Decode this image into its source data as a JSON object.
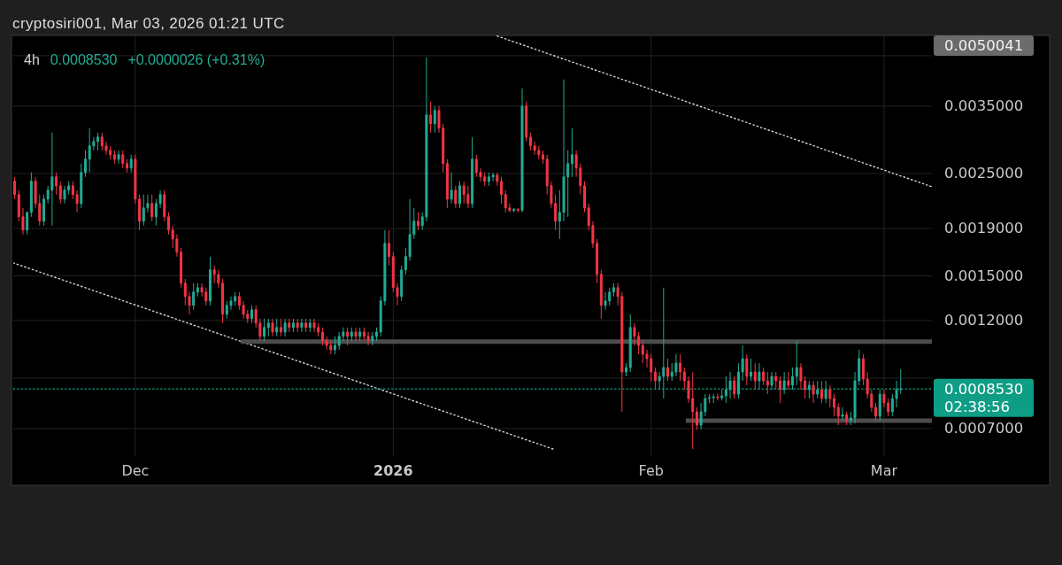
{
  "chart_data": {
    "type": "candlestick",
    "title": "4h",
    "annotations": [
      "cryptosiri001, Mar 03, 2026 01:21 UTC",
      "0.0008530",
      "+0.0000026 (+0.31%)",
      "0.0050041",
      "02:38:56"
    ],
    "colors": [
      "#f23645",
      "#f23645",
      "#f23645",
      "#22ab94",
      "#22ab94",
      "#f23645",
      "#f23645",
      "#22ab94",
      "#22ab94",
      "#22ab94",
      "#f23645",
      "#f23645",
      "#22ab94",
      "#22ab94",
      "#f23645",
      "#f23645",
      "#22ab94",
      "#22ab94",
      "#22ab94",
      "#22ab94",
      "#22ab94",
      "#f23645",
      "#f23645",
      "#f23645",
      "#f23645",
      "#22ab94",
      "#f23645",
      "#f23645",
      "#22ab94",
      "#f23645",
      "#f23645",
      "#22ab94",
      "#22ab94",
      "#f23645",
      "#22ab94",
      "#22ab94",
      "#f23645",
      "#f23645",
      "#f23645",
      "#f23645",
      "#f23645",
      "#f23645",
      "#f23645",
      "#22ab94",
      "#22ab94",
      "#f23645",
      "#f23645",
      "#22ab94",
      "#f23645",
      "#f23645",
      "#f23645",
      "#22ab94",
      "#22ab94",
      "#22ab94",
      "#f23645",
      "#f23645",
      "#f23645",
      "#22ab94",
      "#f23645",
      "#f23645",
      "#22ab94",
      "#22ab94",
      "#f23645",
      "#22ab94",
      "#f23645",
      "#22ab94",
      "#f23645",
      "#22ab94",
      "#f23645",
      "#22ab94",
      "#f23645",
      "#22ab94",
      "#f23645",
      "#f23645",
      "#f23645",
      "#f23645",
      "#f23645",
      "#22ab94",
      "#22ab94",
      "#22ab94",
      "#f23645",
      "#22ab94",
      "#f23645",
      "#22ab94",
      "#f23645",
      "#f23645",
      "#22ab94",
      "#22ab94",
      "#22ab94",
      "#22ab94",
      "#f23645",
      "#f23645",
      "#f23645",
      "#22ab94",
      "#22ab94",
      "#22ab94",
      "#22ab94",
      "#f23645",
      "#22ab94",
      "#22ab94",
      "#f23645",
      "#22ab94",
      "#f23645",
      "#f23645",
      "#f23645",
      "#22ab94",
      "#f23645",
      "#22ab94",
      "#f23645",
      "#f23645",
      "#22ab94",
      "#f23645",
      "#f23645",
      "#f23645",
      "#22ab94",
      "#22ab94",
      "#f23645",
      "#f23645",
      "#f23645",
      "#f23645",
      "#22ab94",
      "#f23645",
      "#22ab94",
      "#f23645",
      "#f23645",
      "#f23645",
      "#f23645",
      "#f23645",
      "#f23645",
      "#f23645",
      "#f23645",
      "#22ab94",
      "#22ab94",
      "#22ab94",
      "#22ab94",
      "#f23645",
      "#f23645",
      "#f23645",
      "#f23645",
      "#f23645",
      "#f23645",
      "#f23645",
      "#22ab94",
      "#22ab94",
      "#22ab94",
      "#f23645",
      "#f23645",
      "#22ab94",
      "#22ab94",
      "#f23645",
      "#f23645",
      "#f23645",
      "#f23645",
      "#f23645",
      "#f23645",
      "#22ab94",
      "#22ab94",
      "#f23645",
      "#22ab94",
      "#22ab94",
      "#f23645",
      "#f23645",
      "#f23645",
      "#f23645",
      "#f23645",
      "#22ab94",
      "#22ab94",
      "#22ab94",
      "#22ab94",
      "#f23645",
      "#22ab94",
      "#22ab94",
      "#22ab94",
      "#f23645",
      "#22ab94",
      "#22ab94",
      "#f23645",
      "#22ab94",
      "#f23645",
      "#22ab94",
      "#f23645",
      "#f23645",
      "#22ab94",
      "#f23645",
      "#f23645",
      "#22ab94",
      "#f23645",
      "#22ab94",
      "#22ab94",
      "#f23645",
      "#f23645",
      "#22ab94",
      "#f23645",
      "#22ab94",
      "#f23645",
      "#22ab94",
      "#f23645",
      "#f23645",
      "#f23645",
      "#22ab94",
      "#f23645",
      "#22ab94",
      "#22ab94",
      "#22ab94",
      "#f23645",
      "#f23645",
      "#f23645",
      "#f23645",
      "#22ab94",
      "#f23645",
      "#f23645",
      "#22ab94",
      "#22ab94",
      "#22ab94"
    ],
    "xlim": [
      "2025-11-16T08:00",
      "2026-03-06T18:00"
    ],
    "xticks": [
      {
        "value": "2025-12-01",
        "label": "Dec"
      },
      {
        "value": "2026-01-01",
        "label": "2026"
      },
      {
        "value": "2026-02-01",
        "label": "Feb"
      },
      {
        "value": "2026-03-01",
        "label": "Mar"
      }
    ],
    "ylim": [
      0.00061,
      0.00498
    ],
    "yticks": [
      {
        "value": 0.0007,
        "label": "0.0007000"
      },
      {
        "value": 0.0009,
        "label": null
      },
      {
        "value": 0.0012,
        "label": "0.0012000"
      },
      {
        "value": 0.0015,
        "label": "0.0015000"
      },
      {
        "value": 0.0019,
        "label": "0.0019000"
      },
      {
        "value": 0.0025,
        "label": "0.0025000"
      },
      {
        "value": 0.0035,
        "label": "0.0035000"
      },
      {
        "value": 0.0045,
        "label": null
      }
    ],
    "log": true,
    "grid": true,
    "ref_lines": [
      {
        "axis": "y",
        "value": 0.000853,
        "label": "0.0008530",
        "color": "#0f9d85",
        "line_style": "dotted"
      }
    ],
    "series": [
      {
        "type": "line",
        "x": [
          "2026-01-13T12:00",
          "2026-03-06T18:00"
        ],
        "values": [
          0.004965,
          0.00234
        ],
        "color": "#d1d4dc",
        "line_style": "dotted"
      },
      {
        "type": "line",
        "x": [
          "2025-11-16T08:00",
          "2026-01-20T10:00"
        ],
        "values": [
          0.0016,
          0.00063
        ],
        "color": "#d1d4dc",
        "line_style": "dotted"
      },
      {
        "type": "line",
        "x": [
          "2025-12-13T16:00",
          "2026-03-06T18:00"
        ],
        "values": [
          0.00108,
          0.00108
        ],
        "color": "#4d4d4d",
        "line_style": "solid"
      },
      {
        "type": "line",
        "x": [
          "2026-02-05T04:00",
          "2026-03-06T18:00"
        ],
        "values": [
          0.000728,
          0.000728
        ],
        "color": "#4d4d4d",
        "line_style": "solid"
      }
    ],
    "x": [
      "2025-11-16T12:00",
      "2025-11-17T00:00",
      "2025-11-17T12:00",
      "2025-11-18T00:00",
      "2025-11-18T12:00",
      "2025-11-19T00:00",
      "2025-11-19T12:00",
      "2025-11-20T00:00",
      "2025-11-20T12:00",
      "2025-11-21T00:00",
      "2025-11-21T12:00",
      "2025-11-22T00:00",
      "2025-11-22T12:00",
      "2025-11-23T00:00",
      "2025-11-23T12:00",
      "2025-11-24T00:00",
      "2025-11-24T12:00",
      "2025-11-25T00:00",
      "2025-11-25T12:00",
      "2025-11-26T00:00",
      "2025-11-26T12:00",
      "2025-11-27T00:00",
      "2025-11-27T12:00",
      "2025-11-28T00:00",
      "2025-11-28T12:00",
      "2025-11-29T00:00",
      "2025-11-29T12:00",
      "2025-11-30T00:00",
      "2025-11-30T12:00",
      "2025-12-01T00:00",
      "2025-12-01T12:00",
      "2025-12-02T00:00",
      "2025-12-02T12:00",
      "2025-12-03T00:00",
      "2025-12-03T12:00",
      "2025-12-04T00:00",
      "2025-12-04T12:00",
      "2025-12-05T00:00",
      "2025-12-05T12:00",
      "2025-12-06T00:00",
      "2025-12-06T12:00",
      "2025-12-07T00:00",
      "2025-12-07T12:00",
      "2025-12-08T00:00",
      "2025-12-08T12:00",
      "2025-12-09T00:00",
      "2025-12-09T12:00",
      "2025-12-10T00:00",
      "2025-12-10T12:00",
      "2025-12-11T00:00",
      "2025-12-11T12:00",
      "2025-12-12T00:00",
      "2025-12-12T12:00",
      "2025-12-13T00:00",
      "2025-12-13T12:00",
      "2025-12-14T00:00",
      "2025-12-14T12:00",
      "2025-12-15T00:00",
      "2025-12-15T12:00",
      "2025-12-16T00:00",
      "2025-12-16T12:00",
      "2025-12-17T00:00",
      "2025-12-17T12:00",
      "2025-12-18T00:00",
      "2025-12-18T12:00",
      "2025-12-19T00:00",
      "2025-12-19T12:00",
      "2025-12-20T00:00",
      "2025-12-20T12:00",
      "2025-12-21T00:00",
      "2025-12-21T12:00",
      "2025-12-22T00:00",
      "2025-12-22T12:00",
      "2025-12-23T00:00",
      "2025-12-23T12:00",
      "2025-12-24T00:00",
      "2025-12-24T12:00",
      "2025-12-25T00:00",
      "2025-12-25T12:00",
      "2025-12-26T00:00",
      "2025-12-26T12:00",
      "2025-12-27T00:00",
      "2025-12-27T12:00",
      "2025-12-28T00:00",
      "2025-12-28T12:00",
      "2025-12-29T00:00",
      "2025-12-29T12:00",
      "2025-12-30T00:00",
      "2025-12-30T12:00",
      "2025-12-31T00:00",
      "2025-12-31T12:00",
      "2026-01-01T00:00",
      "2026-01-01T12:00",
      "2026-01-02T00:00",
      "2026-01-02T12:00",
      "2026-01-03T00:00",
      "2026-01-03T12:00",
      "2026-01-04T00:00",
      "2026-01-04T12:00",
      "2026-01-05T00:00",
      "2026-01-05T12:00",
      "2026-01-06T00:00",
      "2026-01-06T12:00",
      "2026-01-07T00:00",
      "2026-01-07T12:00",
      "2026-01-08T00:00",
      "2026-01-08T12:00",
      "2026-01-09T00:00",
      "2026-01-09T12:00",
      "2026-01-10T00:00",
      "2026-01-10T12:00",
      "2026-01-11T00:00",
      "2026-01-11T12:00",
      "2026-01-12T00:00",
      "2026-01-12T12:00",
      "2026-01-13T00:00",
      "2026-01-13T12:00",
      "2026-01-14T00:00",
      "2026-01-14T12:00",
      "2026-01-15T00:00",
      "2026-01-15T12:00",
      "2026-01-16T00:00",
      "2026-01-16T12:00",
      "2026-01-17T00:00",
      "2026-01-17T12:00",
      "2026-01-18T00:00",
      "2026-01-18T12:00",
      "2026-01-19T00:00",
      "2026-01-19T12:00",
      "2026-01-20T00:00",
      "2026-01-20T12:00",
      "2026-01-21T00:00",
      "2026-01-21T12:00",
      "2026-01-22T00:00",
      "2026-01-22T12:00",
      "2026-01-23T00:00",
      "2026-01-23T12:00",
      "2026-01-24T00:00",
      "2026-01-24T12:00",
      "2026-01-25T00:00",
      "2026-01-25T12:00",
      "2026-01-26T00:00",
      "2026-01-26T12:00",
      "2026-01-27T00:00",
      "2026-01-27T12:00",
      "2026-01-28T00:00",
      "2026-01-28T12:00",
      "2026-01-29T00:00",
      "2026-01-29T12:00",
      "2026-01-30T00:00",
      "2026-01-30T12:00",
      "2026-01-31T00:00",
      "2026-01-31T12:00",
      "2026-02-01T00:00",
      "2026-02-01T12:00",
      "2026-02-02T00:00",
      "2026-02-02T12:00",
      "2026-02-03T00:00",
      "2026-02-03T12:00",
      "2026-02-04T00:00",
      "2026-02-04T12:00",
      "2026-02-05T00:00",
      "2026-02-05T12:00",
      "2026-02-06T00:00",
      "2026-02-06T12:00",
      "2026-02-07T00:00",
      "2026-02-07T12:00",
      "2026-02-08T00:00",
      "2026-02-08T12:00",
      "2026-02-09T00:00",
      "2026-02-09T12:00",
      "2026-02-10T00:00",
      "2026-02-10T12:00",
      "2026-02-11T00:00",
      "2026-02-11T12:00",
      "2026-02-12T00:00",
      "2026-02-12T12:00",
      "2026-02-13T00:00",
      "2026-02-13T12:00",
      "2026-02-14T00:00",
      "2026-02-14T12:00",
      "2026-02-15T00:00",
      "2026-02-15T12:00",
      "2026-02-16T00:00",
      "2026-02-16T12:00",
      "2026-02-17T00:00",
      "2026-02-17T12:00",
      "2026-02-18T00:00",
      "2026-02-18T12:00",
      "2026-02-19T00:00",
      "2026-02-19T12:00",
      "2026-02-20T00:00",
      "2026-02-20T12:00",
      "2026-02-21T00:00",
      "2026-02-21T12:00",
      "2026-02-22T00:00",
      "2026-02-22T12:00",
      "2026-02-23T00:00",
      "2026-02-23T12:00",
      "2026-02-24T00:00",
      "2026-02-24T12:00",
      "2026-02-25T00:00",
      "2026-02-25T12:00",
      "2026-02-26T00:00",
      "2026-02-26T12:00",
      "2026-02-27T00:00",
      "2026-02-27T12:00",
      "2026-02-28T00:00",
      "2026-02-28T12:00",
      "2026-03-01T00:00",
      "2026-03-01T12:00",
      "2026-03-02T00:00",
      "2026-03-02T12:00",
      "2026-03-03T00:00"
    ],
    "ohlc": [
      [
        0.002404,
        0.002458,
        0.0022,
        0.00225
      ],
      [
        0.00225,
        0.0023,
        0.00197,
        0.002014
      ],
      [
        0.002014,
        0.002105,
        0.001844,
        0.001885
      ],
      [
        0.001885,
        0.002059,
        0.001844,
        0.002059
      ],
      [
        0.002059,
        0.002513,
        0.002014,
        0.002404
      ],
      [
        0.002404,
        0.002458,
        0.002105,
        0.002152
      ],
      [
        0.002152,
        0.00225,
        0.001927,
        0.00197
      ],
      [
        0.00197,
        0.00225,
        0.001927,
        0.0022
      ],
      [
        0.0022,
        0.002351,
        0.002152,
        0.0023
      ],
      [
        0.0023,
        0.003065,
        0.001927,
        0.002458
      ],
      [
        0.002458,
        0.002513,
        0.00225,
        0.002351
      ],
      [
        0.002351,
        0.002404,
        0.002152,
        0.0022
      ],
      [
        0.0022,
        0.002351,
        0.002152,
        0.0023
      ],
      [
        0.0023,
        0.002404,
        0.00225,
        0.002351
      ],
      [
        0.002351,
        0.002404,
        0.0022,
        0.00225
      ],
      [
        0.00225,
        0.0023,
        0.002059,
        0.002152
      ],
      [
        0.002152,
        0.002626,
        0.002105,
        0.002513
      ],
      [
        0.002513,
        0.002806,
        0.002458,
        0.002685
      ],
      [
        0.002685,
        0.003134,
        0.002513,
        0.002869
      ],
      [
        0.002869,
        0.002998,
        0.002806,
        0.002933
      ],
      [
        0.002933,
        0.003065,
        0.002806,
        0.002998
      ],
      [
        0.002998,
        0.003065,
        0.002806,
        0.002869
      ],
      [
        0.002869,
        0.002933,
        0.002745,
        0.002806
      ],
      [
        0.002806,
        0.002869,
        0.002685,
        0.002745
      ],
      [
        0.002745,
        0.002806,
        0.002626,
        0.002685
      ],
      [
        0.002685,
        0.002806,
        0.002626,
        0.002745
      ],
      [
        0.002745,
        0.002806,
        0.002569,
        0.002626
      ],
      [
        0.002626,
        0.002685,
        0.002513,
        0.002569
      ],
      [
        0.002569,
        0.002745,
        0.002513,
        0.002685
      ],
      [
        0.002685,
        0.002745,
        0.002152,
        0.0022
      ],
      [
        0.0022,
        0.00225,
        0.001885,
        0.00197
      ],
      [
        0.00197,
        0.00225,
        0.001927,
        0.002105
      ],
      [
        0.002105,
        0.00225,
        0.002059,
        0.002152
      ],
      [
        0.002152,
        0.00225,
        0.00197,
        0.002014
      ],
      [
        0.002014,
        0.0022,
        0.001927,
        0.002152
      ],
      [
        0.002152,
        0.0023,
        0.002105,
        0.00225
      ],
      [
        0.00225,
        0.0023,
        0.00197,
        0.002014
      ],
      [
        0.002014,
        0.002059,
        0.001844,
        0.001885
      ],
      [
        0.001885,
        0.001927,
        0.001725,
        0.001803
      ],
      [
        0.001803,
        0.001844,
        0.001651,
        0.001688
      ],
      [
        0.001688,
        0.001725,
        0.001414,
        0.001446
      ],
      [
        0.001446,
        0.001478,
        0.001294,
        0.001353
      ],
      [
        0.001353,
        0.001383,
        0.001238,
        0.001294
      ],
      [
        0.001294,
        0.001446,
        0.001266,
        0.001383
      ],
      [
        0.001383,
        0.001446,
        0.001353,
        0.001414
      ],
      [
        0.001414,
        0.001446,
        0.001353,
        0.001383
      ],
      [
        0.001383,
        0.001414,
        0.001294,
        0.001323
      ],
      [
        0.001323,
        0.001651,
        0.001294,
        0.001545
      ],
      [
        0.001545,
        0.001579,
        0.001446,
        0.001511
      ],
      [
        0.001511,
        0.001545,
        0.001414,
        0.001446
      ],
      [
        0.001446,
        0.001478,
        0.001185,
        0.001238
      ],
      [
        0.001238,
        0.001323,
        0.001211,
        0.001294
      ],
      [
        0.001294,
        0.001353,
        0.001266,
        0.001323
      ],
      [
        0.001323,
        0.001383,
        0.001294,
        0.001353
      ],
      [
        0.001353,
        0.001383,
        0.001266,
        0.001294
      ],
      [
        0.001294,
        0.001323,
        0.001211,
        0.001238
      ],
      [
        0.001238,
        0.001266,
        0.001185,
        0.001211
      ],
      [
        0.001211,
        0.001294,
        0.001185,
        0.001266
      ],
      [
        0.001266,
        0.001294,
        0.001159,
        0.001185
      ],
      [
        0.001185,
        0.001211,
        0.001084,
        0.001109
      ],
      [
        0.001109,
        0.001211,
        0.001084,
        0.001159
      ],
      [
        0.001159,
        0.001211,
        0.001109,
        0.001185
      ],
      [
        0.001185,
        0.001211,
        0.001109,
        0.001133
      ],
      [
        0.001133,
        0.001211,
        0.001109,
        0.001159
      ],
      [
        0.001159,
        0.001211,
        0.001109,
        0.001133
      ],
      [
        0.001133,
        0.001211,
        0.001109,
        0.001185
      ],
      [
        0.001185,
        0.001211,
        0.001133,
        0.001159
      ],
      [
        0.001159,
        0.001211,
        0.001133,
        0.001185
      ],
      [
        0.001185,
        0.001211,
        0.001133,
        0.001159
      ],
      [
        0.001159,
        0.001211,
        0.001133,
        0.001185
      ],
      [
        0.001185,
        0.001211,
        0.001133,
        0.001159
      ],
      [
        0.001159,
        0.001211,
        0.001133,
        0.001185
      ],
      [
        0.001185,
        0.001211,
        0.001133,
        0.001159
      ],
      [
        0.001159,
        0.001185,
        0.001109,
        0.001133
      ],
      [
        0.001133,
        0.001159,
        0.00106,
        0.001084
      ],
      [
        0.001084,
        0.001109,
        0.001037,
        0.00106
      ],
      [
        0.00106,
        0.001084,
        0.001014,
        0.001037
      ],
      [
        0.001037,
        0.001109,
        0.001014,
        0.00106
      ],
      [
        0.00106,
        0.001133,
        0.001037,
        0.001109
      ],
      [
        0.001109,
        0.001159,
        0.001084,
        0.001133
      ],
      [
        0.001133,
        0.001159,
        0.00106,
        0.001109
      ],
      [
        0.001109,
        0.001159,
        0.001084,
        0.001133
      ],
      [
        0.001133,
        0.001159,
        0.001084,
        0.001109
      ],
      [
        0.001109,
        0.001159,
        0.001084,
        0.001133
      ],
      [
        0.001133,
        0.001159,
        0.001084,
        0.001109
      ],
      [
        0.001109,
        0.001133,
        0.00106,
        0.001084
      ],
      [
        0.001084,
        0.001133,
        0.00106,
        0.001109
      ],
      [
        0.001109,
        0.001159,
        0.001084,
        0.001133
      ],
      [
        0.001133,
        0.001353,
        0.001109,
        0.001323
      ],
      [
        0.001323,
        0.001885,
        0.001294,
        0.001764
      ],
      [
        0.001764,
        0.001885,
        0.001579,
        0.001651
      ],
      [
        0.001651,
        0.001688,
        0.001383,
        0.001414
      ],
      [
        0.001414,
        0.001446,
        0.001294,
        0.001353
      ],
      [
        0.001353,
        0.001579,
        0.001323,
        0.001545
      ],
      [
        0.001545,
        0.001725,
        0.001511,
        0.001651
      ],
      [
        0.001651,
        0.0022,
        0.001615,
        0.001844
      ],
      [
        0.001844,
        0.002105,
        0.001803,
        0.00197
      ],
      [
        0.00197,
        0.002059,
        0.001885,
        0.001927
      ],
      [
        0.001927,
        0.002059,
        0.001885,
        0.002014
      ],
      [
        0.002014,
        0.004464,
        0.00197,
        0.003349
      ],
      [
        0.003349,
        0.003579,
        0.003065,
        0.003204
      ],
      [
        0.003204,
        0.0035,
        0.003065,
        0.003423
      ],
      [
        0.003423,
        0.0035,
        0.003065,
        0.003134
      ],
      [
        0.003134,
        0.003204,
        0.002513,
        0.002626
      ],
      [
        0.002626,
        0.002685,
        0.002105,
        0.0022
      ],
      [
        0.0022,
        0.002513,
        0.002152,
        0.0023
      ],
      [
        0.0023,
        0.002351,
        0.002105,
        0.002152
      ],
      [
        0.002152,
        0.002404,
        0.002105,
        0.002351
      ],
      [
        0.002351,
        0.002404,
        0.002152,
        0.00225
      ],
      [
        0.00225,
        0.002351,
        0.002105,
        0.002152
      ],
      [
        0.002152,
        0.002998,
        0.002105,
        0.002685
      ],
      [
        0.002685,
        0.002745,
        0.002458,
        0.002513
      ],
      [
        0.002513,
        0.002569,
        0.002404,
        0.002458
      ],
      [
        0.002458,
        0.002513,
        0.002351,
        0.002404
      ],
      [
        0.002404,
        0.002513,
        0.002351,
        0.002458
      ],
      [
        0.002458,
        0.002513,
        0.002404,
        0.00248
      ],
      [
        0.00248,
        0.002513,
        0.002351,
        0.002404
      ],
      [
        0.002404,
        0.002458,
        0.002152,
        0.00225
      ],
      [
        0.00225,
        0.0023,
        0.002059,
        0.002105
      ],
      [
        0.002105,
        0.002152,
        0.002059,
        0.00208
      ],
      [
        0.00208,
        0.002105,
        0.002059,
        0.00209
      ],
      [
        0.00209,
        0.002105,
        0.002059,
        0.00208
      ],
      [
        0.00208,
        0.003824,
        0.002059,
        0.0035
      ],
      [
        0.0035,
        0.003579,
        0.002933,
        0.002998
      ],
      [
        0.002998,
        0.003065,
        0.002806,
        0.002869
      ],
      [
        0.002869,
        0.002933,
        0.002745,
        0.002806
      ],
      [
        0.002806,
        0.002869,
        0.002685,
        0.002745
      ],
      [
        0.002745,
        0.002806,
        0.002626,
        0.002685
      ],
      [
        0.002685,
        0.002745,
        0.00225,
        0.002351
      ],
      [
        0.002351,
        0.002404,
        0.002105,
        0.002152
      ],
      [
        0.002152,
        0.00225,
        0.001885,
        0.00197
      ],
      [
        0.00197,
        0.0023,
        0.001803,
        0.002059
      ],
      [
        0.002059,
        0.003997,
        0.00197,
        0.002458
      ],
      [
        0.002458,
        0.002806,
        0.002014,
        0.002626
      ],
      [
        0.002626,
        0.003134,
        0.002458,
        0.002745
      ],
      [
        0.002745,
        0.002806,
        0.002458,
        0.002569
      ],
      [
        0.002569,
        0.002626,
        0.00225,
        0.002351
      ],
      [
        0.002351,
        0.002404,
        0.002059,
        0.002105
      ],
      [
        0.002105,
        0.002152,
        0.001885,
        0.001927
      ],
      [
        0.001927,
        0.00197,
        0.001725,
        0.001764
      ],
      [
        0.001764,
        0.001803,
        0.001446,
        0.001511
      ],
      [
        0.001511,
        0.001545,
        0.001211,
        0.001294
      ],
      [
        0.001294,
        0.001383,
        0.001266,
        0.001323
      ],
      [
        0.001323,
        0.001414,
        0.001294,
        0.001383
      ],
      [
        0.001383,
        0.001446,
        0.001353,
        0.001414
      ],
      [
        0.001414,
        0.001446,
        0.001294,
        0.001353
      ],
      [
        0.001353,
        0.001383,
        0.000761,
        0.000928
      ],
      [
        0.000928,
        0.00097,
        0.000908,
        0.000949
      ],
      [
        0.000949,
        0.001238,
        0.000928,
        0.001159
      ],
      [
        0.001159,
        0.001185,
        0.00106,
        0.001109
      ],
      [
        0.001109,
        0.001133,
        0.001014,
        0.00106
      ],
      [
        0.00106,
        0.001084,
        0.00097,
        0.001014
      ],
      [
        0.001014,
        0.001037,
        0.000949,
        0.000992
      ],
      [
        0.000992,
        0.001014,
        0.000888,
        0.000928
      ],
      [
        0.000928,
        0.000949,
        0.00085,
        0.000888
      ],
      [
        0.000888,
        0.000928,
        0.00085,
        0.000908
      ],
      [
        0.000908,
        0.001414,
        0.000813,
        0.000949
      ],
      [
        0.000949,
        0.000992,
        0.000888,
        0.000908
      ],
      [
        0.000908,
        0.00097,
        0.000888,
        0.000928
      ],
      [
        0.000928,
        0.001014,
        0.000908,
        0.00097
      ],
      [
        0.00097,
        0.001014,
        0.000888,
        0.000928
      ],
      [
        0.000928,
        0.000949,
        0.00085,
        0.000888
      ],
      [
        0.000888,
        0.000908,
        0.000795,
        0.000813
      ],
      [
        0.000813,
        0.000928,
        0.000632,
        0.000761
      ],
      [
        0.000761,
        0.000778,
        0.000696,
        0.000712
      ],
      [
        0.000712,
        0.000795,
        0.000696,
        0.000761
      ],
      [
        0.000761,
        0.000831,
        0.000744,
        0.000813
      ],
      [
        0.000813,
        0.000831,
        0.000795,
        0.000816
      ],
      [
        0.000816,
        0.000831,
        0.000795,
        0.00082
      ],
      [
        0.00082,
        0.000834,
        0.000805,
        0.000816
      ],
      [
        0.000816,
        0.00085,
        0.000805,
        0.000824
      ],
      [
        0.000824,
        0.000908,
        0.000795,
        0.00085
      ],
      [
        0.00085,
        0.000928,
        0.000813,
        0.000888
      ],
      [
        0.000888,
        0.000908,
        0.000813,
        0.000831
      ],
      [
        0.000831,
        0.00097,
        0.000813,
        0.000928
      ],
      [
        0.000928,
        0.00106,
        0.000888,
        0.000992
      ],
      [
        0.000992,
        0.001014,
        0.000869,
        0.000908
      ],
      [
        0.000908,
        0.000992,
        0.000888,
        0.000928
      ],
      [
        0.000928,
        0.00097,
        0.00085,
        0.000888
      ],
      [
        0.000888,
        0.00097,
        0.00085,
        0.000928
      ],
      [
        0.000928,
        0.000949,
        0.000869,
        0.000888
      ],
      [
        0.000888,
        0.000928,
        0.000831,
        0.000869
      ],
      [
        0.000869,
        0.000928,
        0.00085,
        0.000908
      ],
      [
        0.000908,
        0.000928,
        0.00085,
        0.000888
      ],
      [
        0.000888,
        0.000908,
        0.000795,
        0.00085
      ],
      [
        0.00085,
        0.000928,
        0.000831,
        0.000888
      ],
      [
        0.000888,
        0.000928,
        0.00085,
        0.000869
      ],
      [
        0.000869,
        0.000949,
        0.00085,
        0.000908
      ],
      [
        0.000908,
        0.001084,
        0.000869,
        0.000949
      ],
      [
        0.000949,
        0.00097,
        0.00085,
        0.000888
      ],
      [
        0.000888,
        0.000908,
        0.000813,
        0.00085
      ],
      [
        0.00085,
        0.000888,
        0.000813,
        0.000869
      ],
      [
        0.000869,
        0.000888,
        0.000795,
        0.000831
      ],
      [
        0.000831,
        0.000888,
        0.000813,
        0.00085
      ],
      [
        0.00085,
        0.000888,
        0.000795,
        0.000813
      ],
      [
        0.000813,
        0.000888,
        0.000795,
        0.00085
      ],
      [
        0.00085,
        0.000869,
        0.000778,
        0.000813
      ],
      [
        0.000813,
        0.000831,
        0.000744,
        0.000778
      ],
      [
        0.000778,
        0.000795,
        0.000712,
        0.000744
      ],
      [
        0.000744,
        0.000778,
        0.000728,
        0.00075
      ],
      [
        0.00075,
        0.000761,
        0.000712,
        0.000728
      ],
      [
        0.000728,
        0.000761,
        0.000712,
        0.000738
      ],
      [
        0.000738,
        0.000928,
        0.000718,
        0.000888
      ],
      [
        0.000888,
        0.001037,
        0.000869,
        0.000992
      ],
      [
        0.000992,
        0.001014,
        0.000869,
        0.000896
      ],
      [
        0.000896,
        0.000928,
        0.000813,
        0.000831
      ],
      [
        0.000831,
        0.00085,
        0.000761,
        0.000778
      ],
      [
        0.000778,
        0.000795,
        0.000728,
        0.000744
      ],
      [
        0.000744,
        0.00085,
        0.000728,
        0.000831
      ],
      [
        0.000831,
        0.00085,
        0.000778,
        0.000795
      ],
      [
        0.000795,
        0.000813,
        0.000744,
        0.000761
      ],
      [
        0.000761,
        0.000831,
        0.000744,
        0.000813
      ],
      [
        0.000813,
        0.000888,
        0.000778,
        0.0008504
      ],
      [
        0.0008504,
        0.00094,
        0.000831,
        0.000853
      ]
    ]
  }
}
